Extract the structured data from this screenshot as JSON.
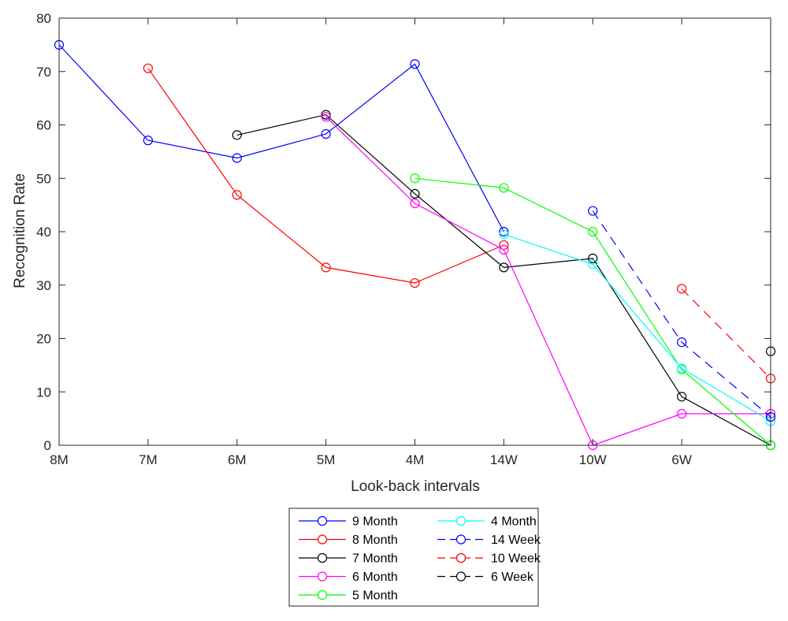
{
  "chart_data": {
    "type": "line",
    "xlabel": "Look-back intervals",
    "ylabel": "Recognition Rate",
    "x_tick_labels": [
      "8M",
      "7M",
      "6M",
      "5M",
      "4M",
      "14W",
      "10W",
      "6W",
      ""
    ],
    "y_ticks": [
      0,
      10,
      20,
      30,
      40,
      50,
      60,
      70,
      80
    ],
    "ylim": [
      0,
      80
    ],
    "grid": false,
    "marker": "open-circle",
    "legend": {
      "placement": "bottom-outside",
      "columns": 2
    },
    "series": [
      {
        "name": "9 Month",
        "color": "#0000ff",
        "dash": false,
        "points": [
          [
            1,
            75
          ],
          [
            2,
            57.1
          ],
          [
            3,
            53.8
          ],
          [
            4,
            58.3
          ],
          [
            5,
            71.4
          ],
          [
            6,
            40
          ]
        ]
      },
      {
        "name": "8 Month",
        "color": "#ff0000",
        "dash": false,
        "points": [
          [
            2,
            70.6
          ],
          [
            3,
            46.9
          ],
          [
            4,
            33.3
          ],
          [
            5,
            30.4
          ],
          [
            6,
            37.5
          ]
        ]
      },
      {
        "name": "7 Month",
        "color": "#000000",
        "dash": false,
        "points": [
          [
            3,
            58.1
          ],
          [
            4,
            61.9
          ],
          [
            5,
            47.1
          ],
          [
            6,
            33.3
          ],
          [
            7,
            35
          ],
          [
            8,
            9.1
          ],
          [
            9,
            0
          ]
        ]
      },
      {
        "name": "6 Month",
        "color": "#ff00ff",
        "dash": false,
        "points": [
          [
            4,
            61.5
          ],
          [
            5,
            45.3
          ],
          [
            6,
            36.6
          ],
          [
            7,
            0
          ],
          [
            8,
            5.9
          ],
          [
            9,
            5.9
          ]
        ]
      },
      {
        "name": "5 Month",
        "color": "#00ff00",
        "dash": false,
        "points": [
          [
            5,
            50
          ],
          [
            6,
            48.2
          ],
          [
            7,
            40
          ],
          [
            8,
            14.2
          ],
          [
            9,
            0
          ]
        ]
      },
      {
        "name": "4 Month",
        "color": "#00ffff",
        "dash": false,
        "points": [
          [
            6,
            39.5
          ],
          [
            7,
            33.9
          ],
          [
            8,
            14.4
          ],
          [
            9,
            4.5
          ]
        ]
      },
      {
        "name": "14 Week",
        "color": "#0000ff",
        "dash": true,
        "points": [
          [
            7,
            43.9
          ],
          [
            8,
            19.3
          ],
          [
            9,
            5.3
          ]
        ]
      },
      {
        "name": "10 Week",
        "color": "#ff0000",
        "dash": true,
        "points": [
          [
            8,
            29.3
          ],
          [
            9,
            12.5
          ]
        ]
      },
      {
        "name": "6 Week",
        "color": "#000000",
        "dash": true,
        "points": [
          [
            9,
            17.6
          ]
        ]
      }
    ]
  }
}
